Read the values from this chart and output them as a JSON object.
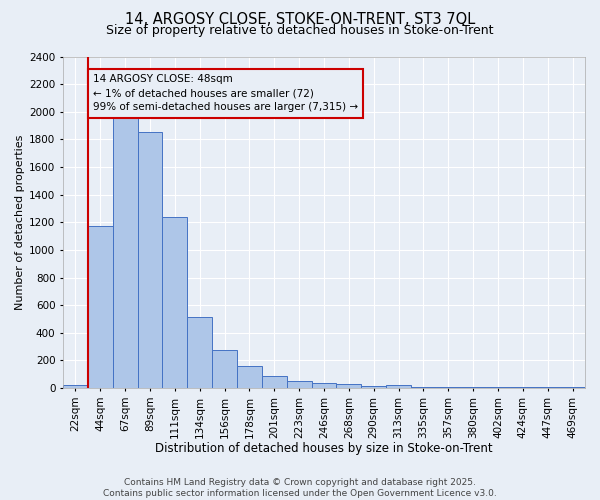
{
  "title1": "14, ARGOSY CLOSE, STOKE-ON-TRENT, ST3 7QL",
  "title2": "Size of property relative to detached houses in Stoke-on-Trent",
  "xlabel": "Distribution of detached houses by size in Stoke-on-Trent",
  "ylabel": "Number of detached properties",
  "categories": [
    "22sqm",
    "44sqm",
    "67sqm",
    "89sqm",
    "111sqm",
    "134sqm",
    "156sqm",
    "178sqm",
    "201sqm",
    "223sqm",
    "246sqm",
    "268sqm",
    "290sqm",
    "313sqm",
    "335sqm",
    "357sqm",
    "380sqm",
    "402sqm",
    "424sqm",
    "447sqm",
    "469sqm"
  ],
  "values": [
    25,
    1175,
    1960,
    1850,
    1240,
    515,
    275,
    160,
    90,
    50,
    40,
    30,
    15,
    20,
    10,
    5,
    5,
    5,
    5,
    5,
    5
  ],
  "bar_color": "#aec6e8",
  "bar_edge_color": "#4472c4",
  "vline_color": "#cc0000",
  "annotation_text": "14 ARGOSY CLOSE: 48sqm\n← 1% of detached houses are smaller (72)\n99% of semi-detached houses are larger (7,315) →",
  "annotation_box_color": "#cc0000",
  "background_color": "#e8eef6",
  "grid_color": "#ffffff",
  "ylim": [
    0,
    2400
  ],
  "yticks": [
    0,
    200,
    400,
    600,
    800,
    1000,
    1200,
    1400,
    1600,
    1800,
    2000,
    2200,
    2400
  ],
  "footer_text": "Contains HM Land Registry data © Crown copyright and database right 2025.\nContains public sector information licensed under the Open Government Licence v3.0.",
  "title1_fontsize": 10.5,
  "title2_fontsize": 9,
  "xlabel_fontsize": 8.5,
  "ylabel_fontsize": 8,
  "tick_fontsize": 7.5,
  "footer_fontsize": 6.5
}
